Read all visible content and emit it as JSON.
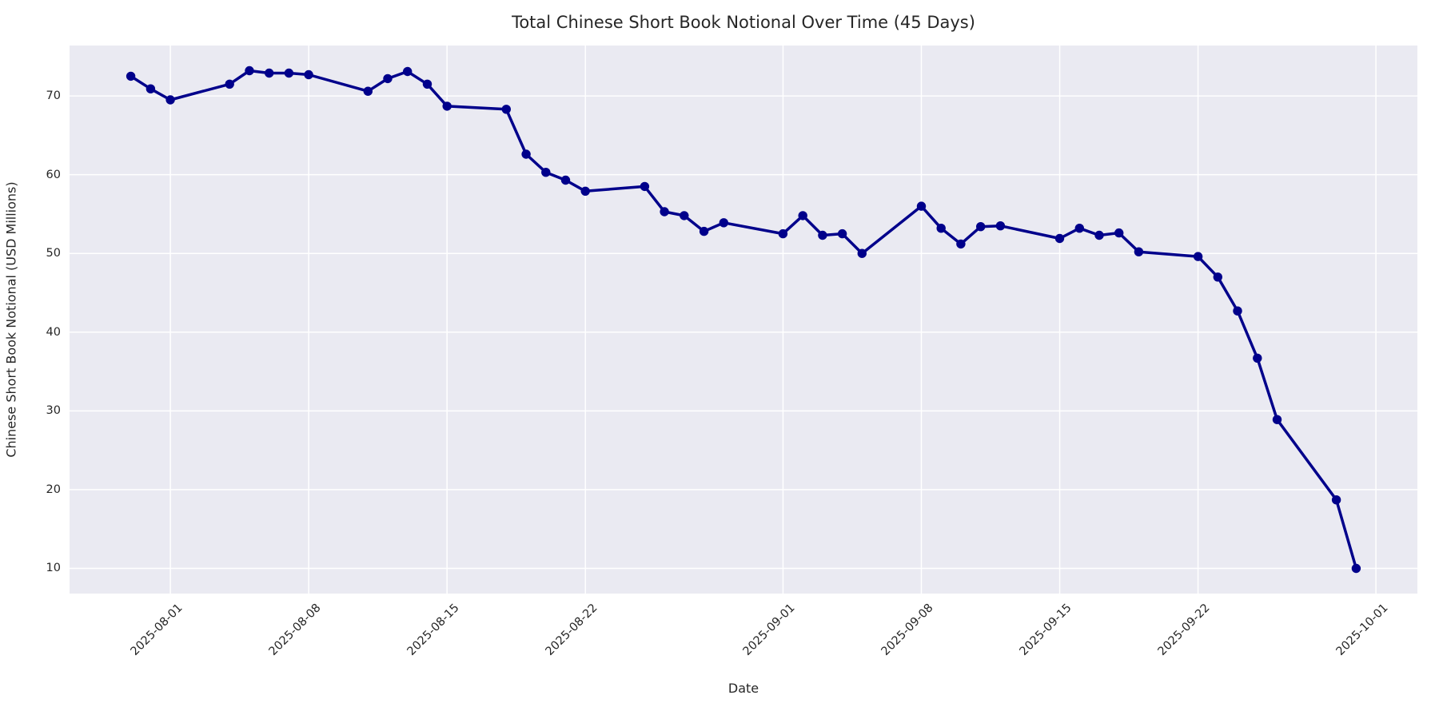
{
  "chart_data": {
    "type": "line",
    "title": "Total Chinese Short Book Notional Over Time (45 Days)",
    "xlabel": "Date",
    "ylabel": "Chinese Short Book Notional (USD Millions)",
    "series": [
      {
        "name": "Total Chinese Short Book Notional",
        "x": [
          "2025-07-30",
          "2025-07-31",
          "2025-08-01",
          "2025-08-04",
          "2025-08-05",
          "2025-08-06",
          "2025-08-07",
          "2025-08-08",
          "2025-08-11",
          "2025-08-12",
          "2025-08-13",
          "2025-08-14",
          "2025-08-15",
          "2025-08-18",
          "2025-08-19",
          "2025-08-20",
          "2025-08-21",
          "2025-08-22",
          "2025-08-25",
          "2025-08-26",
          "2025-08-27",
          "2025-08-28",
          "2025-08-29",
          "2025-09-01",
          "2025-09-02",
          "2025-09-03",
          "2025-09-04",
          "2025-09-05",
          "2025-09-08",
          "2025-09-09",
          "2025-09-10",
          "2025-09-11",
          "2025-09-12",
          "2025-09-15",
          "2025-09-16",
          "2025-09-17",
          "2025-09-18",
          "2025-09-19",
          "2025-09-22",
          "2025-09-23",
          "2025-09-24",
          "2025-09-25",
          "2025-09-26",
          "2025-09-29",
          "2025-09-30"
        ],
        "values": [
          72.5,
          70.9,
          69.5,
          71.5,
          73.2,
          72.9,
          72.9,
          72.7,
          70.6,
          72.2,
          73.1,
          71.5,
          68.7,
          68.3,
          62.6,
          60.3,
          59.3,
          57.9,
          58.5,
          55.3,
          54.8,
          52.8,
          53.9,
          52.5,
          54.8,
          52.3,
          52.5,
          50.0,
          56.0,
          53.2,
          51.2,
          53.4,
          53.5,
          51.9,
          53.2,
          52.3,
          52.6,
          50.2,
          49.6,
          47.0,
          42.7,
          36.7,
          28.9,
          18.7,
          10.0
        ]
      }
    ],
    "x_tick_labels": [
      "2025-08-01",
      "2025-08-08",
      "2025-08-15",
      "2025-08-22",
      "2025-09-01",
      "2025-09-08",
      "2025-09-15",
      "2025-09-22",
      "2025-10-01"
    ],
    "y_ticks": [
      10,
      20,
      30,
      40,
      50,
      60,
      70
    ],
    "ylim": [
      6.8,
      76.4
    ],
    "x_margin_days": 3.1,
    "grid": true,
    "legend": false,
    "marker": "circle",
    "colors": {
      "line": "#00008B",
      "marker": "#00008B",
      "plot_background": "#EAEAF2",
      "grid": "#FFFFFF",
      "text": "#262626",
      "figure_background": "#FFFFFF"
    }
  }
}
